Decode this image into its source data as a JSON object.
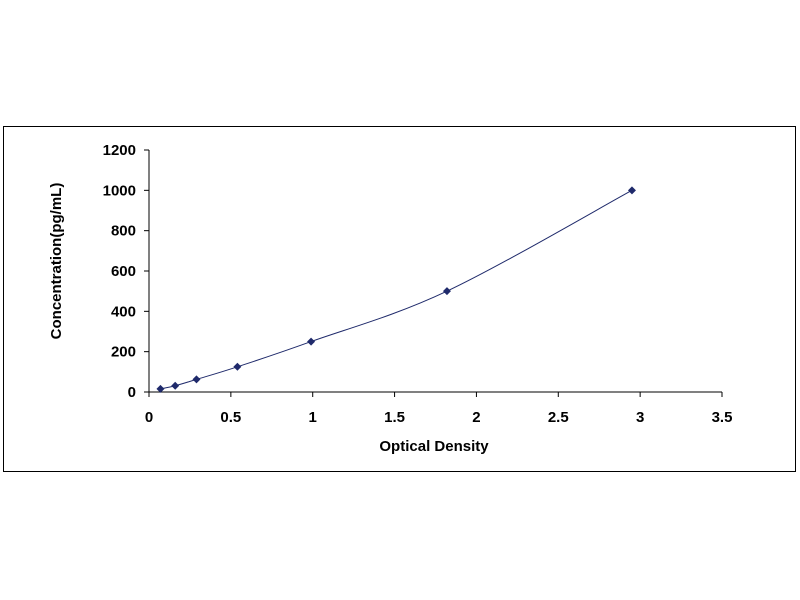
{
  "chart_data": {
    "type": "scatter",
    "title": "",
    "xlabel": "Optical Density",
    "ylabel": "Concentration(pg/mL)",
    "xlim": [
      0,
      3.5
    ],
    "ylim": [
      0,
      1200
    ],
    "x_ticks": [
      "0",
      "0.5",
      "1",
      "1.5",
      "2",
      "2.5",
      "3",
      "3.5"
    ],
    "y_ticks": [
      "0",
      "200",
      "400",
      "600",
      "800",
      "1000",
      "1200"
    ],
    "grid": false,
    "legend": "none",
    "series": [
      {
        "x": [
          0.07,
          0.16,
          0.29,
          0.54,
          0.99,
          1.82,
          2.95
        ],
        "y": [
          15.6,
          31.2,
          62.5,
          125,
          250,
          500,
          1000
        ],
        "marker": "diamond",
        "fit_line": true,
        "color": "#1f2a6b"
      }
    ]
  }
}
